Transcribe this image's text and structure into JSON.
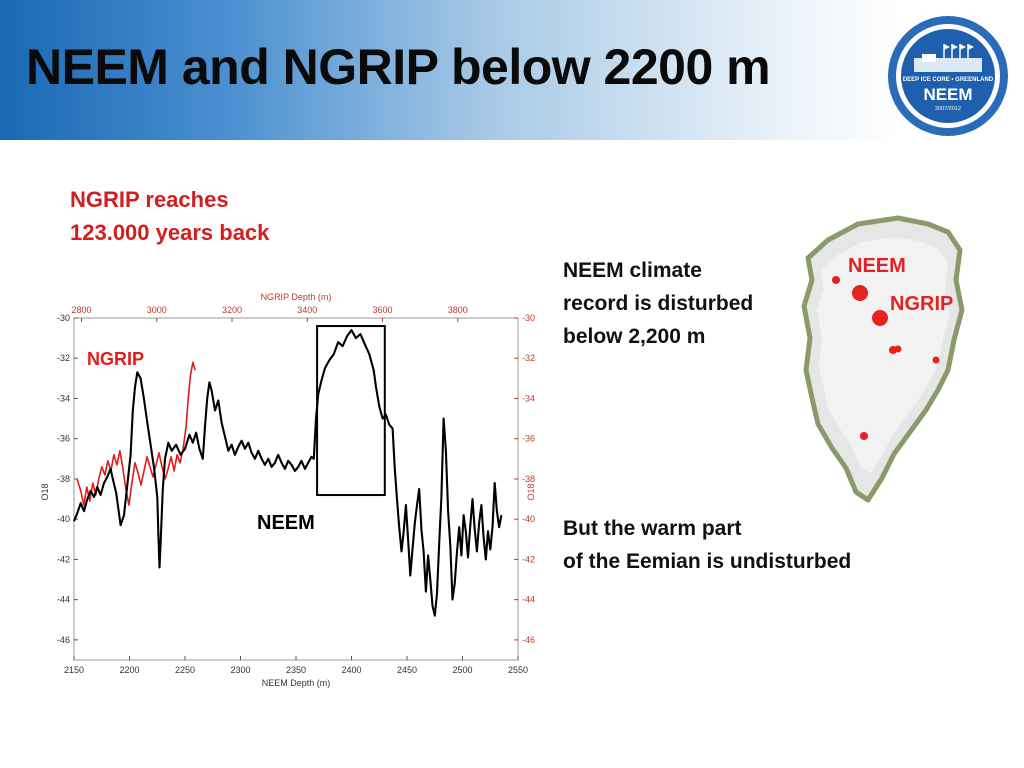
{
  "slide": {
    "title": "NEEM and NGRIP below 2200 m",
    "ngrip_note_lines": [
      "NGRIP reaches",
      "123.000 years back"
    ],
    "neem_note_lines": [
      "NEEM climate",
      "record is disturbed",
      "below 2,200 m"
    ],
    "eemian_note_lines": [
      "But the warm part",
      "of the Eemian is undisturbed"
    ]
  },
  "logo": {
    "ring_text": "DEEP ICE CORE • GREENLAND",
    "name": "NEEM",
    "years": "2007/2012"
  },
  "map": {
    "labels": [
      "NEEM",
      "NGRIP"
    ]
  },
  "colors": {
    "ngrip_series": "#e21b1b",
    "neem_series": "#000000",
    "red_text": "#d21e1e",
    "map_label": "#e52222"
  },
  "chart_data": {
    "type": "line",
    "top_axis_label": "NGRIP Depth (m)",
    "bottom_axis_label": "NEEM Depth (m)",
    "left_axis_label": "O18",
    "right_axis_label": "O18",
    "x_bottom_range": [
      2150,
      2550
    ],
    "x_top_range": [
      2780,
      3960
    ],
    "y_range": [
      -47,
      -30
    ],
    "x_bottom_ticks": [
      "2150",
      "2200",
      "2250",
      "2300",
      "2350",
      "2400",
      "2450",
      "2500",
      "2550"
    ],
    "x_top_ticks": [
      "2800",
      "3000",
      "3200",
      "3400",
      "3600",
      "3800"
    ],
    "y_ticks_left": [
      "-30",
      "-32",
      "-34",
      "-36",
      "-38",
      "-40",
      "-42",
      "-44",
      "-46"
    ],
    "y_ticks_right": [
      "-30",
      "-32",
      "-34",
      "-36",
      "-38",
      "-40",
      "-42",
      "-44",
      "-46"
    ],
    "series_labels": [
      "NGRIP",
      "NEEM"
    ],
    "highlight_box": {
      "neem_depth": [
        2369,
        2430
      ],
      "o18": [
        -38.8,
        -30.4
      ]
    },
    "series": [
      {
        "name": "NGRIP",
        "axis": "top",
        "color": "#e21b1b",
        "points": [
          [
            2788,
            -38.0
          ],
          [
            2798,
            -38.6
          ],
          [
            2806,
            -39.3
          ],
          [
            2814,
            -38.4
          ],
          [
            2822,
            -39.1
          ],
          [
            2830,
            -38.2
          ],
          [
            2838,
            -38.8
          ],
          [
            2846,
            -38.0
          ],
          [
            2854,
            -37.4
          ],
          [
            2862,
            -37.8
          ],
          [
            2870,
            -37.1
          ],
          [
            2878,
            -37.6
          ],
          [
            2886,
            -36.8
          ],
          [
            2894,
            -37.3
          ],
          [
            2902,
            -36.6
          ],
          [
            2910,
            -37.5
          ],
          [
            2918,
            -38.5
          ],
          [
            2926,
            -39.3
          ],
          [
            2934,
            -38.2
          ],
          [
            2942,
            -37.2
          ],
          [
            2950,
            -37.7
          ],
          [
            2958,
            -38.3
          ],
          [
            2966,
            -37.6
          ],
          [
            2974,
            -36.9
          ],
          [
            2982,
            -37.4
          ],
          [
            2990,
            -37.9
          ],
          [
            2998,
            -37.3
          ],
          [
            3006,
            -36.7
          ],
          [
            3014,
            -37.4
          ],
          [
            3022,
            -38.0
          ],
          [
            3030,
            -37.5
          ],
          [
            3038,
            -36.9
          ],
          [
            3046,
            -37.6
          ],
          [
            3054,
            -36.8
          ],
          [
            3062,
            -37.2
          ],
          [
            3070,
            -36.5
          ],
          [
            3078,
            -35.4
          ],
          [
            3084,
            -33.9
          ],
          [
            3090,
            -32.8
          ],
          [
            3096,
            -32.2
          ],
          [
            3102,
            -32.6
          ]
        ]
      },
      {
        "name": "NEEM",
        "axis": "bottom",
        "color": "#000000",
        "points": [
          [
            2150,
            -40.1
          ],
          [
            2153,
            -39.7
          ],
          [
            2156,
            -39.2
          ],
          [
            2159,
            -39.6
          ],
          [
            2162,
            -39.0
          ],
          [
            2165,
            -38.6
          ],
          [
            2168,
            -38.9
          ],
          [
            2171,
            -38.4
          ],
          [
            2174,
            -38.8
          ],
          [
            2177,
            -38.2
          ],
          [
            2180,
            -37.9
          ],
          [
            2183,
            -37.5
          ],
          [
            2185,
            -38.0
          ],
          [
            2188,
            -38.7
          ],
          [
            2190,
            -39.5
          ],
          [
            2192,
            -40.3
          ],
          [
            2195,
            -39.8
          ],
          [
            2198,
            -38.3
          ],
          [
            2201,
            -36.8
          ],
          [
            2203,
            -34.6
          ],
          [
            2205,
            -33.4
          ],
          [
            2207,
            -32.7
          ],
          [
            2210,
            -33.0
          ],
          [
            2213,
            -34.0
          ],
          [
            2216,
            -35.2
          ],
          [
            2219,
            -36.3
          ],
          [
            2222,
            -37.4
          ],
          [
            2225,
            -38.9
          ],
          [
            2226,
            -40.8
          ],
          [
            2227,
            -42.4
          ],
          [
            2228,
            -41.2
          ],
          [
            2230,
            -38.5
          ],
          [
            2232,
            -37.0
          ],
          [
            2235,
            -36.2
          ],
          [
            2238,
            -36.6
          ],
          [
            2242,
            -36.3
          ],
          [
            2246,
            -36.8
          ],
          [
            2250,
            -36.5
          ],
          [
            2254,
            -35.8
          ],
          [
            2257,
            -36.2
          ],
          [
            2260,
            -35.7
          ],
          [
            2263,
            -36.5
          ],
          [
            2266,
            -37.0
          ],
          [
            2268,
            -35.4
          ],
          [
            2270,
            -34.0
          ],
          [
            2272,
            -33.2
          ],
          [
            2274,
            -33.6
          ],
          [
            2277,
            -34.6
          ],
          [
            2280,
            -34.1
          ],
          [
            2283,
            -35.2
          ],
          [
            2286,
            -35.9
          ],
          [
            2289,
            -36.6
          ],
          [
            2292,
            -36.3
          ],
          [
            2295,
            -36.8
          ],
          [
            2298,
            -36.4
          ],
          [
            2301,
            -36.1
          ],
          [
            2304,
            -36.5
          ],
          [
            2307,
            -36.2
          ],
          [
            2310,
            -36.7
          ],
          [
            2313,
            -37.0
          ],
          [
            2316,
            -36.6
          ],
          [
            2319,
            -37.0
          ],
          [
            2322,
            -37.3
          ],
          [
            2325,
            -37.0
          ],
          [
            2328,
            -37.4
          ],
          [
            2331,
            -37.2
          ],
          [
            2334,
            -36.8
          ],
          [
            2337,
            -37.2
          ],
          [
            2340,
            -37.5
          ],
          [
            2343,
            -37.1
          ],
          [
            2346,
            -37.3
          ],
          [
            2349,
            -37.6
          ],
          [
            2352,
            -37.4
          ],
          [
            2355,
            -37.1
          ],
          [
            2358,
            -37.5
          ],
          [
            2361,
            -37.2
          ],
          [
            2364,
            -36.9
          ],
          [
            2366,
            -37.0
          ],
          [
            2368,
            -35.0
          ],
          [
            2370,
            -33.8
          ],
          [
            2373,
            -33.1
          ],
          [
            2376,
            -32.5
          ],
          [
            2380,
            -32.1
          ],
          [
            2384,
            -31.8
          ],
          [
            2388,
            -31.2
          ],
          [
            2392,
            -31.4
          ],
          [
            2396,
            -30.9
          ],
          [
            2400,
            -30.6
          ],
          [
            2404,
            -31.0
          ],
          [
            2408,
            -30.8
          ],
          [
            2412,
            -31.3
          ],
          [
            2416,
            -31.8
          ],
          [
            2420,
            -32.6
          ],
          [
            2422,
            -33.4
          ],
          [
            2425,
            -34.4
          ],
          [
            2428,
            -35.0
          ],
          [
            2431,
            -34.8
          ],
          [
            2434,
            -35.3
          ],
          [
            2437,
            -35.5
          ],
          [
            2439,
            -37.5
          ],
          [
            2441,
            -39.0
          ],
          [
            2443,
            -40.4
          ],
          [
            2445,
            -41.6
          ],
          [
            2447,
            -40.6
          ],
          [
            2449,
            -39.3
          ],
          [
            2451,
            -41.0
          ],
          [
            2453,
            -42.8
          ],
          [
            2455,
            -41.5
          ],
          [
            2457,
            -40.2
          ],
          [
            2459,
            -39.3
          ],
          [
            2461,
            -38.5
          ],
          [
            2463,
            -40.5
          ],
          [
            2465,
            -41.6
          ],
          [
            2467,
            -43.6
          ],
          [
            2469,
            -41.8
          ],
          [
            2471,
            -43.0
          ],
          [
            2473,
            -44.3
          ],
          [
            2475,
            -44.8
          ],
          [
            2477,
            -43.7
          ],
          [
            2479,
            -41.2
          ],
          [
            2481,
            -38.9
          ],
          [
            2483,
            -35.0
          ],
          [
            2485,
            -36.6
          ],
          [
            2487,
            -39.6
          ],
          [
            2489,
            -41.3
          ],
          [
            2491,
            -44.0
          ],
          [
            2493,
            -43.2
          ],
          [
            2495,
            -41.6
          ],
          [
            2497,
            -40.4
          ],
          [
            2499,
            -41.8
          ],
          [
            2501,
            -39.8
          ],
          [
            2503,
            -40.6
          ],
          [
            2505,
            -41.9
          ],
          [
            2507,
            -40.3
          ],
          [
            2509,
            -39.0
          ],
          [
            2511,
            -40.5
          ],
          [
            2513,
            -41.6
          ],
          [
            2515,
            -40.2
          ],
          [
            2517,
            -39.3
          ],
          [
            2519,
            -40.9
          ],
          [
            2521,
            -42.0
          ],
          [
            2523,
            -40.6
          ],
          [
            2525,
            -41.5
          ],
          [
            2527,
            -40.4
          ],
          [
            2529,
            -38.2
          ],
          [
            2531,
            -39.6
          ],
          [
            2533,
            -40.4
          ],
          [
            2535,
            -39.8
          ]
        ]
      }
    ]
  }
}
